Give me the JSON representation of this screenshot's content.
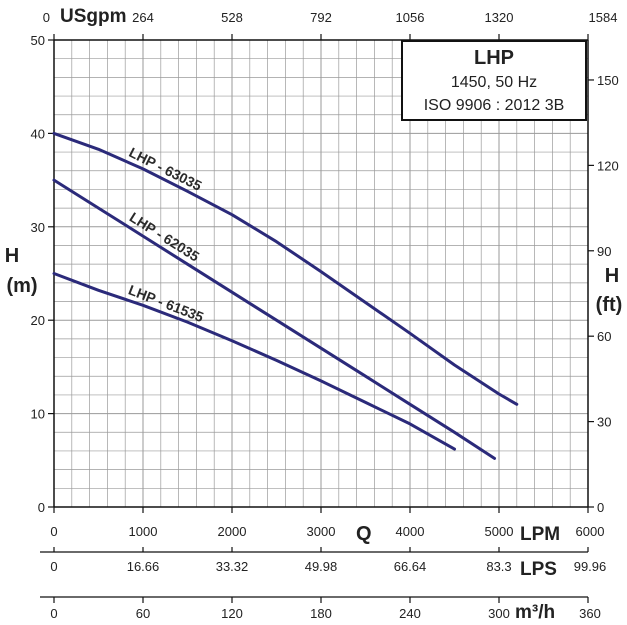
{
  "chart_data": {
    "type": "line",
    "title": "LHP",
    "subtitle_lines": [
      "1450, 50 Hz",
      "ISO 9906 : 2012 3B"
    ],
    "xlabel": "Q",
    "ylabel_left": "H",
    "ylabel_left_unit": "(m)",
    "ylabel_right": "H",
    "ylabel_right_unit": "(ft)",
    "x_axis": {
      "unit": "LPM",
      "range": [
        0,
        6000
      ],
      "ticks": [
        "0",
        "1000",
        "2000",
        "3000",
        "4000",
        "5000",
        "6000"
      ]
    },
    "y_axis": {
      "unit": "m",
      "range": [
        0,
        50
      ],
      "ticks": [
        "0",
        "10",
        "20",
        "30",
        "40",
        "50"
      ]
    },
    "secondary_axes": {
      "top_usgpm": {
        "unit": "USgpm",
        "ticks": [
          "0",
          "264",
          "528",
          "792",
          "1056",
          "1320",
          "1584"
        ]
      },
      "right_ft": {
        "unit": "ft",
        "ticks": [
          "0",
          "30",
          "60",
          "90",
          "120",
          "150"
        ]
      },
      "lps": {
        "unit": "LPS",
        "ticks": [
          "0",
          "16.66",
          "33.32",
          "49.98",
          "66.64",
          "83.3",
          "99.96"
        ]
      },
      "m3h": {
        "unit": "m³/h",
        "ticks": [
          "0",
          "60",
          "120",
          "180",
          "240",
          "300",
          "360"
        ]
      }
    },
    "grid": true,
    "series": [
      {
        "name": "LHP - 63035",
        "color": "#2b2a7a",
        "x": [
          0,
          500,
          1000,
          1500,
          2000,
          2500,
          3000,
          3500,
          4000,
          4500,
          5000,
          5200
        ],
        "y": [
          40,
          38.3,
          36.2,
          33.8,
          31.3,
          28.4,
          25.2,
          21.9,
          18.6,
          15.2,
          12.1,
          11
        ]
      },
      {
        "name": "LHP - 62035",
        "color": "#2b2a7a",
        "x": [
          0,
          500,
          1000,
          1500,
          2000,
          2500,
          3000,
          3500,
          4000,
          4500,
          4950
        ],
        "y": [
          35,
          32,
          29,
          26,
          23,
          20,
          17,
          14,
          11,
          8,
          5.2
        ]
      },
      {
        "name": "LHP - 61535",
        "color": "#2b2a7a",
        "x": [
          0,
          500,
          1000,
          1500,
          2000,
          2500,
          3000,
          3500,
          4000,
          4500
        ],
        "y": [
          25,
          23.2,
          21.6,
          19.8,
          17.8,
          15.7,
          13.5,
          11.2,
          8.9,
          6.2
        ]
      }
    ]
  }
}
